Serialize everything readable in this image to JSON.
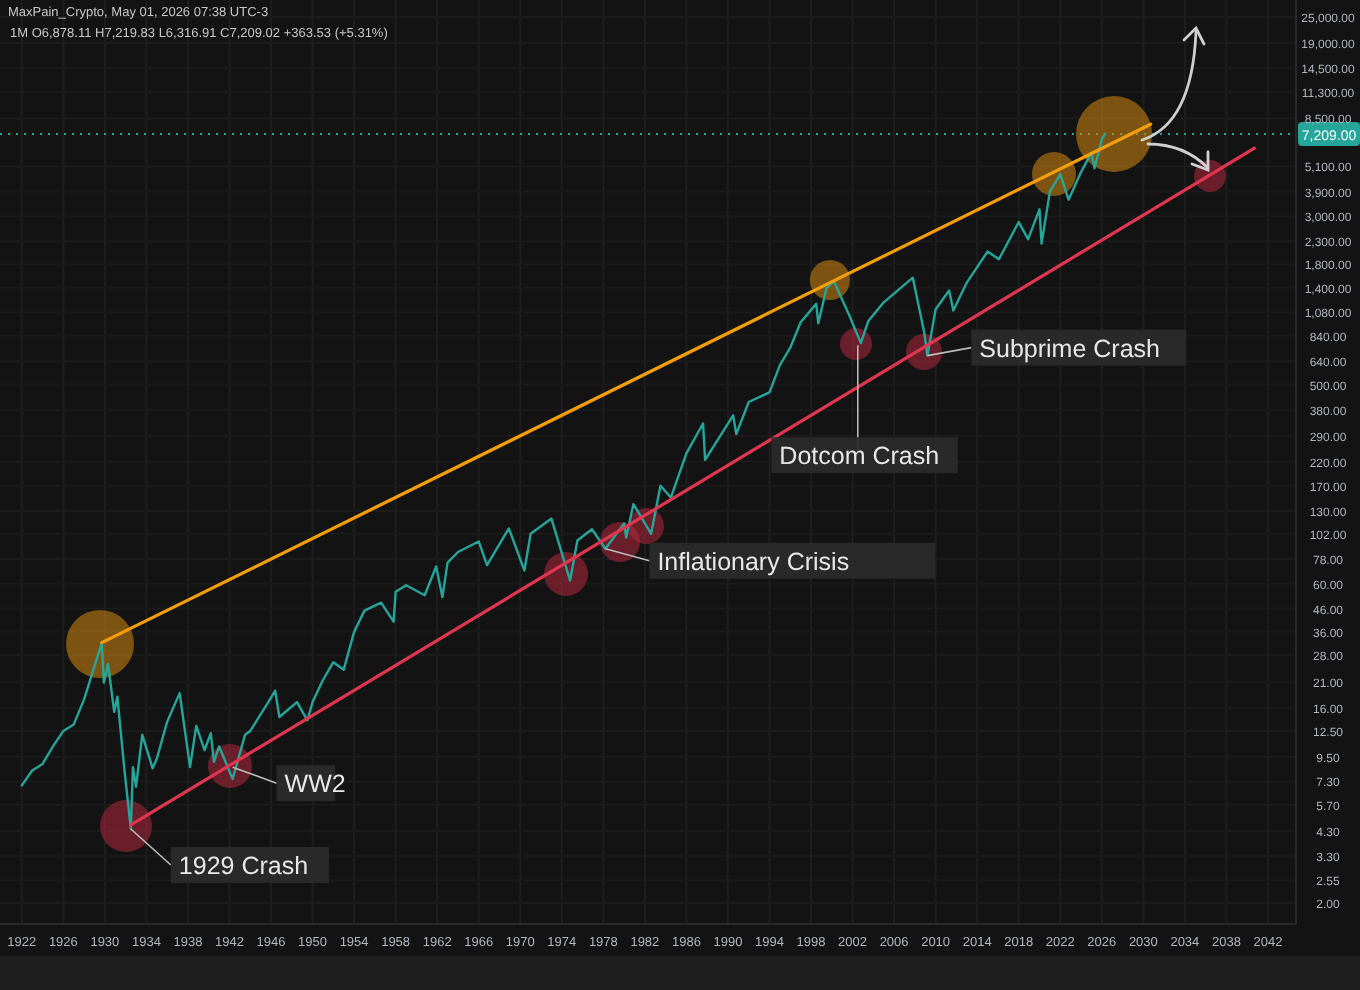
{
  "chart_data": {
    "type": "line",
    "title": "MaxPain_Crypto, May 01, 2026 07:38 UTC-3",
    "subtitle": "1M  O6,878.11  H7,219.83  L6,316.91  C7,209.02  +363.53 (+5.31%)",
    "xlim": [
      1919.9,
      2044.7
    ],
    "ylim": [
      1.6,
      30000
    ],
    "log": true,
    "grid": true,
    "xticks": [
      1922,
      1926,
      1930,
      1934,
      1938,
      1942,
      1946,
      1950,
      1954,
      1958,
      1962,
      1966,
      1970,
      1974,
      1978,
      1982,
      1986,
      1990,
      1994,
      1998,
      2002,
      2006,
      2010,
      2014,
      2018,
      2022,
      2026,
      2030,
      2034,
      2038,
      2042
    ],
    "yticks": [
      {
        "value": 2,
        "label": "2.00"
      },
      {
        "value": 2.55,
        "label": "2.55"
      },
      {
        "value": 3.3,
        "label": "3.30"
      },
      {
        "value": 4.3,
        "label": "4.30"
      },
      {
        "value": 5.7,
        "label": "5.70"
      },
      {
        "value": 7.3,
        "label": "7.30"
      },
      {
        "value": 9.5,
        "label": "9.50"
      },
      {
        "value": 12.5,
        "label": "12.50"
      },
      {
        "value": 16,
        "label": "16.00"
      },
      {
        "value": 21,
        "label": "21.00"
      },
      {
        "value": 28,
        "label": "28.00"
      },
      {
        "value": 36,
        "label": "36.00"
      },
      {
        "value": 46,
        "label": "46.00"
      },
      {
        "value": 60,
        "label": "60.00"
      },
      {
        "value": 78,
        "label": "78.00"
      },
      {
        "value": 102,
        "label": "102.00"
      },
      {
        "value": 130,
        "label": "130.00"
      },
      {
        "value": 170,
        "label": "170.00"
      },
      {
        "value": 220,
        "label": "220.00"
      },
      {
        "value": 290,
        "label": "290.00"
      },
      {
        "value": 380,
        "label": "380.00"
      },
      {
        "value": 500,
        "label": "500.00"
      },
      {
        "value": 640,
        "label": "640.00"
      },
      {
        "value": 840,
        "label": "840.00"
      },
      {
        "value": 1080,
        "label": "1,080.00"
      },
      {
        "value": 1400,
        "label": "1,400.00"
      },
      {
        "value": 1800,
        "label": "1,800.00"
      },
      {
        "value": 2300,
        "label": "2,300.00"
      },
      {
        "value": 3000,
        "label": "3,000.00"
      },
      {
        "value": 3900,
        "label": "3,900.00"
      },
      {
        "value": 5100,
        "label": "5,100.00"
      },
      {
        "value": 8500,
        "label": "8,500.00"
      },
      {
        "value": 11300,
        "label": "11,300.00"
      },
      {
        "value": 14500,
        "label": "14,500.00"
      },
      {
        "value": 19000,
        "label": "19,000.00"
      },
      {
        "value": 25000,
        "label": "25,000.00"
      }
    ],
    "series": [
      {
        "color": "#26a69a",
        "x": [
          1922,
          1923,
          1924,
          1925,
          1926,
          1927,
          1928,
          1929.7,
          1929.9,
          1930.3,
          1930.9,
          1931.2,
          1931.9,
          1932.5,
          1932.7,
          1933,
          1933.6,
          1934.6,
          1935,
          1936,
          1937.2,
          1938.2,
          1938.8,
          1939.6,
          1940.2,
          1940.5,
          1941,
          1942.3,
          1943.5,
          1944,
          1945.9,
          1946.4,
          1946.8,
          1948.5,
          1949.5,
          1950,
          1951,
          1952,
          1953,
          1954,
          1955,
          1956.6,
          1957.8,
          1958,
          1959,
          1960.8,
          1961.9,
          1962.5,
          1963,
          1964,
          1966,
          1966.8,
          1968.9,
          1970.4,
          1971,
          1973,
          1974.8,
          1975.5,
          1976.9,
          1978.2,
          1980,
          1980.2,
          1980.9,
          1982.6,
          1983.5,
          1984.5,
          1986,
          1987.6,
          1987.8,
          1990.5,
          1990.8,
          1992,
          1994,
          1995,
          1996,
          1997,
          1998.5,
          1998.7,
          1999.5,
          2000.2,
          2001.7,
          2002.8,
          2003.5,
          2005,
          2007.8,
          2008.9,
          2009.2,
          2010,
          2011.3,
          2011.7,
          2013,
          2015,
          2016.1,
          2018,
          2018.9,
          2020,
          2020.2,
          2021,
          2022,
          2022.8,
          2024,
          2025,
          2025.3,
          2026,
          2026.3
        ],
        "values": [
          7,
          8.2,
          8.8,
          10.6,
          12.5,
          13.4,
          17.5,
          31.9,
          20.9,
          25.5,
          15.3,
          18,
          8.1,
          4.4,
          8.5,
          6.9,
          12,
          8.4,
          9.3,
          13.8,
          18.7,
          8.5,
          13.2,
          10.2,
          12.2,
          9,
          10.6,
          7.5,
          12,
          12.5,
          17.5,
          19.2,
          14.5,
          17,
          14,
          17,
          21.5,
          26,
          24,
          35.9,
          45,
          49,
          40,
          55,
          59,
          53,
          72,
          52,
          75,
          84,
          94,
          73,
          108,
          69,
          102,
          120,
          62,
          95,
          107,
          87,
          114,
          98,
          140,
          102,
          170,
          150,
          240,
          330,
          224,
          360,
          295,
          415,
          460,
          615,
          740,
          970,
          1180,
          960,
          1400,
          1500,
          1040,
          776,
          980,
          1200,
          1560,
          870,
          680,
          1115,
          1360,
          1100,
          1480,
          2060,
          1900,
          2820,
          2350,
          3230,
          2240,
          3900,
          4700,
          3580,
          4800,
          5900,
          5000,
          6800,
          7209
        ]
      },
      {
        "color": "#f59e0b",
        "x": [
          1929.7,
          2030.7
        ],
        "values": [
          32,
          7990
        ]
      },
      {
        "color": "#e0364f",
        "x": [
          1932.5,
          2040.7
        ],
        "values": [
          4.6,
          6190
        ]
      }
    ],
    "ref_lines": [
      {
        "axis": "y",
        "value": 7209,
        "label": "7,209.00",
        "color": "#26a69a",
        "line_style": "dotted"
      }
    ],
    "annotations": [
      {
        "text": "1929 Crash",
        "x": 1932.5,
        "y": 4.4
      },
      {
        "text": "WW2",
        "x": 1942.3,
        "y": 8.5
      },
      {
        "text": "Inflationary Crisis",
        "x": 1978.2,
        "y": 87
      },
      {
        "text": "Dotcom Crash",
        "x": 2002.5,
        "y": 760
      },
      {
        "text": "Subprime Crash",
        "x": 2009.2,
        "y": 680
      }
    ]
  }
}
